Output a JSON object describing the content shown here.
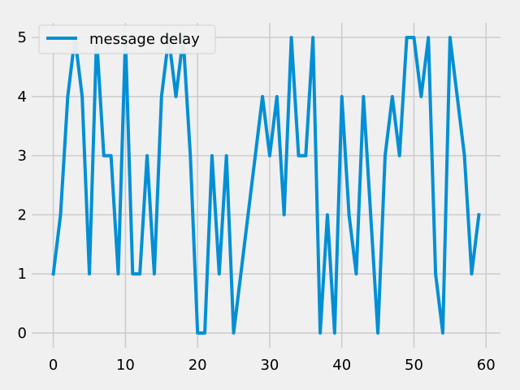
{
  "chart_data": {
    "type": "line",
    "title": "",
    "xlabel": "",
    "ylabel": "",
    "xlim": [
      -3,
      62
    ],
    "ylim": [
      -0.25,
      5.25
    ],
    "xticks": [
      0,
      10,
      20,
      30,
      40,
      50,
      60
    ],
    "yticks": [
      0,
      1,
      2,
      3,
      4,
      5
    ],
    "grid": true,
    "legend": "top-left",
    "series": [
      {
        "name": "message delay",
        "color": "#008fd5",
        "x": [
          0,
          1,
          2,
          3,
          4,
          5,
          6,
          7,
          8,
          9,
          10,
          11,
          12,
          13,
          14,
          15,
          16,
          17,
          18,
          19,
          20,
          21,
          22,
          23,
          24,
          25,
          26,
          27,
          28,
          29,
          30,
          31,
          32,
          33,
          34,
          35,
          36,
          37,
          38,
          39,
          40,
          41,
          42,
          43,
          44,
          45,
          46,
          47,
          48,
          49,
          50,
          51,
          52,
          53,
          54,
          55,
          56,
          57,
          58,
          59
        ],
        "values": [
          1,
          2,
          4,
          5,
          4,
          1,
          5,
          3,
          3,
          1,
          5,
          1,
          1,
          3,
          1,
          4,
          5,
          4,
          5,
          3,
          0,
          0,
          3,
          1,
          3,
          0,
          1,
          2,
          3,
          4,
          3,
          4,
          2,
          5,
          3,
          3,
          5,
          0,
          2,
          0,
          4,
          2,
          1,
          4,
          2,
          0,
          3,
          4,
          3,
          5,
          5,
          4,
          5,
          1,
          0,
          5,
          4,
          3,
          1,
          2
        ]
      }
    ]
  }
}
